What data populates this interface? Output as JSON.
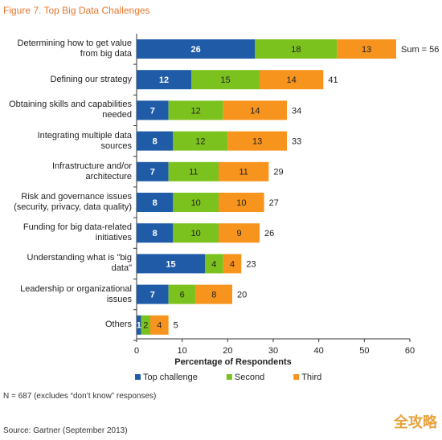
{
  "title": "Figure 7. Top Big Data Challenges",
  "chart_data": {
    "type": "stacked-bar-horizontal",
    "categories": [
      "Determining how to get value from big data",
      "Defining our strategy",
      "Obtaining skills and capabilities needed",
      "Integrating multiple data sources",
      "Infrastructure and/or architecture",
      "Risk and governance issues (security, privacy, data quality)",
      "Funding for big data-related initiatives",
      "Understanding what is \"big data\"",
      "Leadership or organizational issues",
      "Others"
    ],
    "series": [
      {
        "name": "Top challenge",
        "color": "#1f5ba6",
        "values": [
          26,
          12,
          7,
          8,
          7,
          8,
          8,
          15,
          7,
          1
        ]
      },
      {
        "name": "Second",
        "color": "#7cc21f",
        "values": [
          18,
          15,
          12,
          12,
          11,
          10,
          10,
          4,
          6,
          2
        ]
      },
      {
        "name": "Third",
        "color": "#f7941d",
        "values": [
          13,
          14,
          14,
          13,
          11,
          10,
          9,
          4,
          8,
          4
        ]
      }
    ],
    "totals": {
      "values": [
        56,
        41,
        34,
        33,
        29,
        27,
        26,
        23,
        20,
        5
      ],
      "value_labels": [
        "Sum = 56",
        "41",
        "34",
        "33",
        "29",
        "27",
        "26",
        "23",
        "20",
        "5"
      ]
    },
    "xlim": [
      0,
      60
    ],
    "xticks": [
      0,
      10,
      20,
      30,
      40,
      50,
      60
    ],
    "xlabel": "Percentage of Respondents"
  },
  "note": "N = 687 (excludes “don’t know” responses)",
  "source": "Source: Gartner (September 2013)",
  "watermark": "全攻略"
}
